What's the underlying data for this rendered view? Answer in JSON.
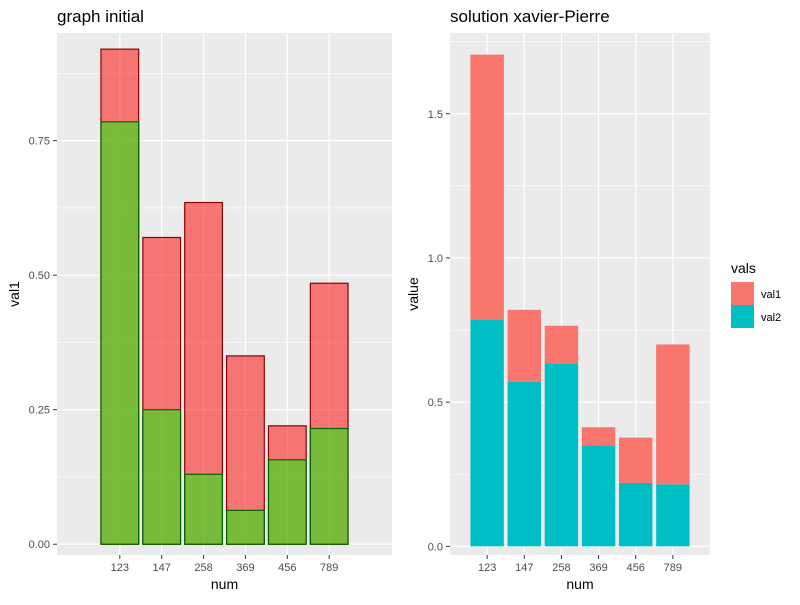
{
  "colors": {
    "panel_bg": "#ebebeb",
    "grid": "#ffffff",
    "val1_fill": "#f8766d",
    "val2_fill": "#00bfc4",
    "left_val1_fill": "#ff0000",
    "left_val1_border": "#8b0000",
    "left_val2_fill": "#00ff00",
    "left_val2_border": "#006400"
  },
  "chart_data": [
    {
      "type": "bar",
      "title": "graph initial",
      "xlabel": "num",
      "ylabel": "val1",
      "categories": [
        "123",
        "147",
        "258",
        "369",
        "456",
        "789"
      ],
      "ylim": [
        -0.02,
        0.95
      ],
      "yticks": [
        "0.00",
        "0.25",
        "0.50",
        "0.75"
      ],
      "ytick_values": [
        0,
        0.25,
        0.5,
        0.75
      ],
      "grid": true,
      "mode": "overlay",
      "series": [
        {
          "values": [
            0.92,
            0.57,
            0.635,
            0.35,
            0.22,
            0.485
          ]
        },
        {
          "values": [
            0.785,
            0.25,
            0.13,
            0.063,
            0.157,
            0.215
          ]
        }
      ]
    },
    {
      "type": "bar",
      "title": "solution xavier-Pierre",
      "xlabel": "num",
      "ylabel": "value",
      "categories": [
        "123",
        "147",
        "258",
        "369",
        "456",
        "789"
      ],
      "ylim": [
        -0.03,
        1.78
      ],
      "yticks": [
        "0.0",
        "0.5",
        "1.0",
        "1.5"
      ],
      "ytick_values": [
        0,
        0.5,
        1.0,
        1.5
      ],
      "grid": true,
      "mode": "stacked",
      "legend": {
        "title": "vals",
        "position": "right"
      },
      "series": [
        {
          "name": "val1",
          "values": [
            0.92,
            0.25,
            0.13,
            0.063,
            0.157,
            0.485
          ]
        },
        {
          "name": "val2",
          "values": [
            0.785,
            0.57,
            0.635,
            0.35,
            0.22,
            0.215
          ]
        }
      ]
    }
  ]
}
